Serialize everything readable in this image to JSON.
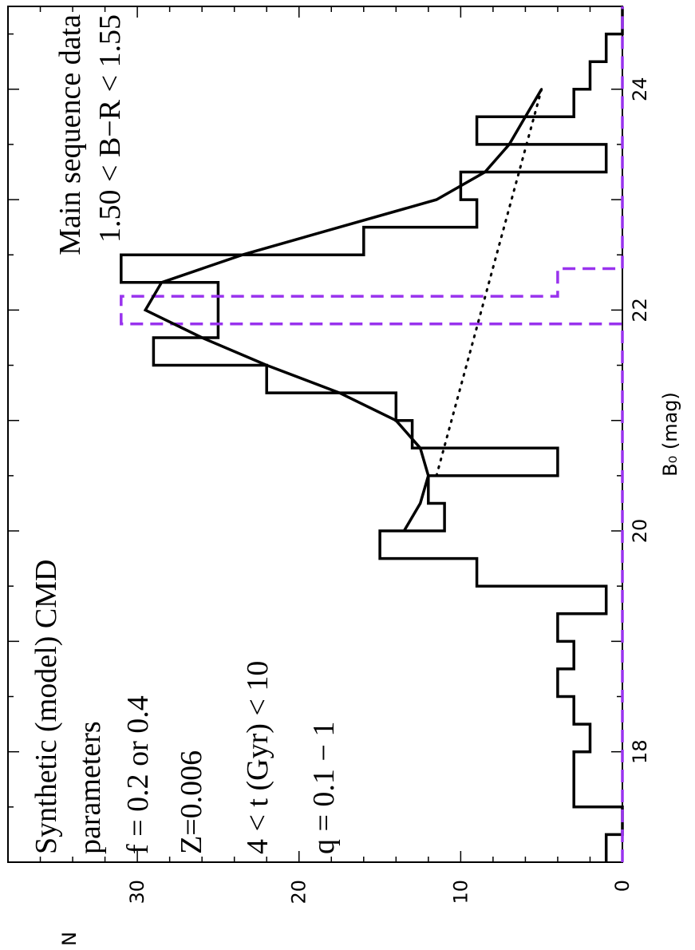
{
  "chart_data": {
    "type": "line",
    "orientation": "rotated 90 degrees counter-clockwise",
    "xlabel": "B₀ (mag)",
    "ylabel": "N",
    "xlim": [
      17.0,
      24.75
    ],
    "ylim": [
      0,
      38
    ],
    "x_ticks": [
      18,
      20,
      22,
      24
    ],
    "y_ticks": [
      0,
      10,
      20,
      30
    ],
    "grid": false,
    "annotations_left": [
      "Synthetic (model) CMD",
      "parameters",
      "f = 0.2 or 0.4",
      "Z=0.006",
      "4 < t (Gyr) < 10",
      "q = 0.1 − 1"
    ],
    "annotations_right": [
      "Main sequence data",
      "1.50 < B−R < 1.55"
    ],
    "series": [
      {
        "kind": "step",
        "color": "#000000",
        "bins": {
          "edges": [
            17.0,
            17.125,
            17.25,
            17.375,
            17.5,
            17.625,
            17.75,
            17.875,
            18.0,
            18.125,
            18.25,
            18.375,
            18.5,
            18.625,
            18.75,
            18.875,
            19.0,
            19.125,
            19.25,
            19.375,
            19.5,
            19.625,
            19.75,
            19.875,
            20.0,
            20.125,
            20.25,
            20.375,
            20.5,
            20.625,
            20.75,
            20.875,
            21.0,
            21.125,
            21.25,
            21.375,
            21.5,
            21.625,
            21.75,
            21.875,
            22.0,
            22.125,
            22.25,
            22.375,
            22.5,
            22.625,
            22.75,
            22.875,
            23.0,
            23.125,
            23.25,
            23.375,
            23.5,
            23.625,
            23.75,
            23.875,
            24.0,
            24.125,
            24.25,
            24.375,
            24.5,
            24.625,
            24.75
          ],
          "counts": [
            1,
            1,
            0,
            0,
            3,
            3,
            3,
            3,
            2,
            2,
            3,
            3,
            4,
            4,
            3,
            3,
            4,
            4,
            1,
            1,
            9,
            9,
            15,
            15,
            11,
            11,
            12,
            12,
            4,
            4,
            13,
            13,
            14,
            14,
            22,
            22,
            29,
            29,
            25,
            25,
            25,
            25,
            31,
            31,
            16,
            16,
            9,
            9,
            10,
            10,
            1,
            1,
            9,
            9,
            3,
            3,
            2,
            2,
            1,
            1,
            0,
            0
          ]
        }
      },
      {
        "kind": "step",
        "color": "#9933ee",
        "dash": "dashed",
        "bins": {
          "edges": [
            17.0,
            20.0,
            21.875,
            22.125,
            22.375,
            22.625,
            24.75
          ],
          "counts": [
            0,
            0,
            31,
            4,
            0,
            0
          ]
        }
      },
      {
        "kind": "line",
        "color": "#000000",
        "dash": "solid",
        "x": [
          20.0,
          20.25,
          20.5,
          20.75,
          21.0,
          21.25,
          21.5,
          21.75,
          22.0,
          22.25,
          22.5,
          22.75,
          23.0,
          23.25,
          23.5,
          23.75,
          24.0
        ],
        "y": [
          13.5,
          12.5,
          12.0,
          12.5,
          14.0,
          17.5,
          22.0,
          26.0,
          29.5,
          28.5,
          23.5,
          17.5,
          11.5,
          8.5,
          7.0,
          6.0,
          5.0
        ]
      },
      {
        "kind": "line",
        "color": "#000000",
        "dash": "dotted",
        "x": [
          20.5,
          24.0
        ],
        "y": [
          11.5,
          5.0
        ]
      }
    ]
  }
}
